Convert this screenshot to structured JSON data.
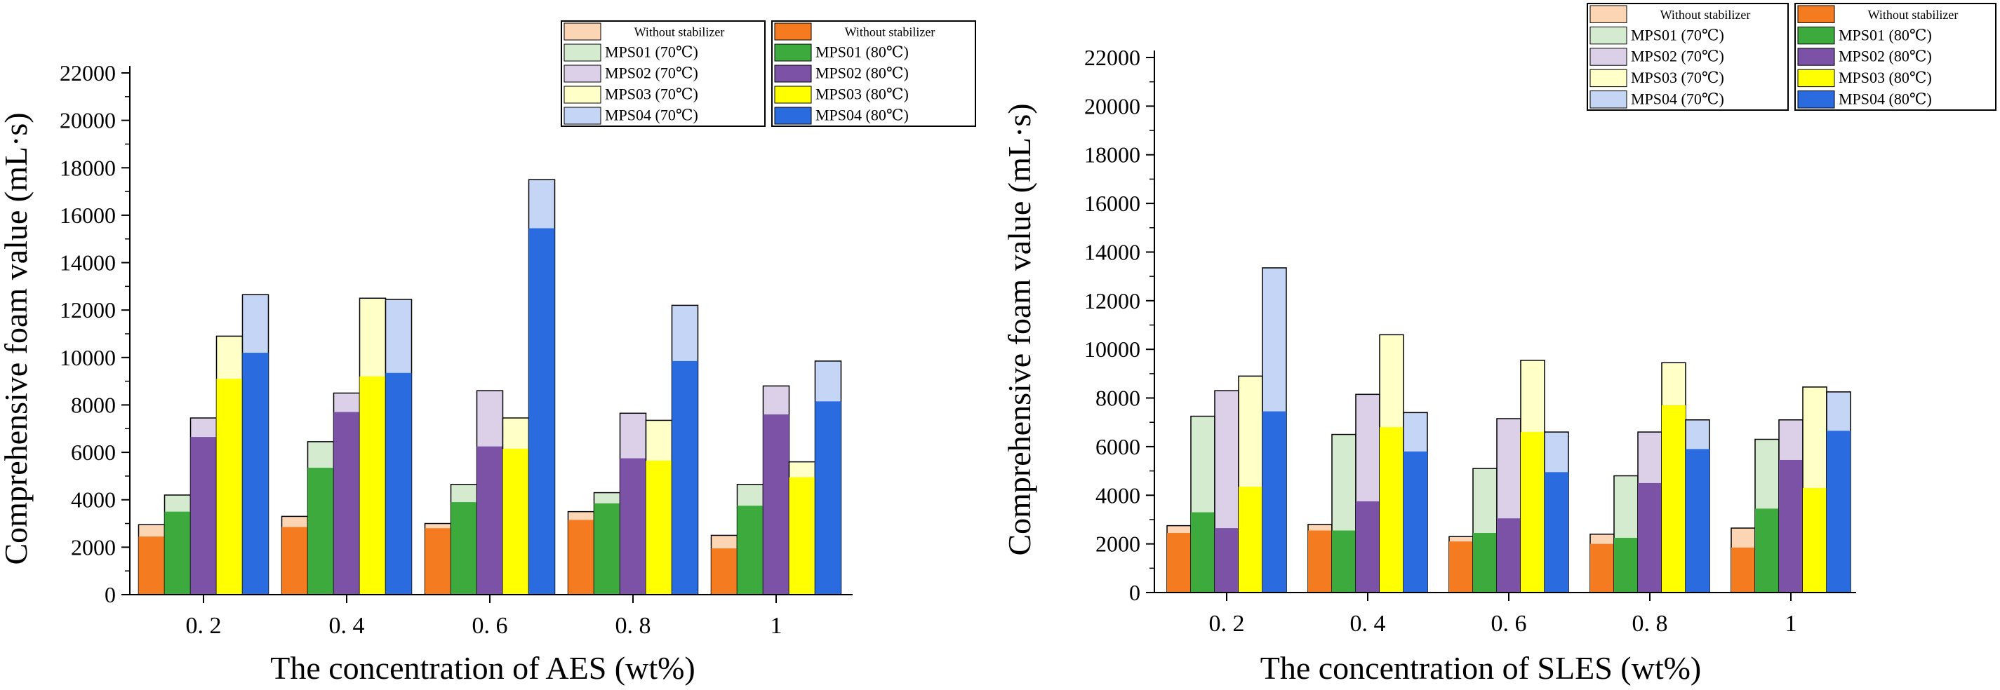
{
  "colors": {
    "without_light": "#FCD5B4",
    "without_dark": "#F47B20",
    "mps01_light": "#D5EBD0",
    "mps01_dark": "#3CAA3C",
    "mps02_light": "#DCD0E8",
    "mps02_dark": "#7B52A6",
    "mps03_light": "#FFFFC8",
    "mps03_dark": "#FFFF00",
    "mps04_light": "#C4D5F5",
    "mps04_dark": "#2A6CE0"
  },
  "chart_data": [
    {
      "type": "bar",
      "ylabel": "Comprehensive foam value (mL·s)",
      "xlabel": "The concentration of AES (wt%)",
      "categories": [
        "0. 2",
        "0. 4",
        "0. 6",
        "0. 8",
        "1"
      ],
      "ylim": [
        0,
        22000
      ],
      "yticks": [
        "0",
        "2000",
        "4000",
        "6000",
        "8000",
        "10000",
        "12000",
        "14000",
        "16000",
        "18000",
        "20000",
        "22000"
      ],
      "legend_70": [
        "Without stabilizer",
        "MPS01 (70℃)",
        "MPS02 (70℃)",
        "MPS03 (70℃)",
        "MPS04 (70℃)"
      ],
      "legend_80": [
        "Without stabilizer",
        "MPS01 (80℃)",
        "MPS02 (80℃)",
        "MPS03 (80℃)",
        "MPS04 (80℃)"
      ],
      "series_70": [
        {
          "name": "Without stabilizer",
          "values": [
            2950,
            3300,
            3000,
            3500,
            2500
          ]
        },
        {
          "name": "MPS01 (70℃)",
          "values": [
            4200,
            6450,
            4650,
            4300,
            4650
          ]
        },
        {
          "name": "MPS02 (70℃)",
          "values": [
            7450,
            8500,
            8600,
            7650,
            8800
          ]
        },
        {
          "name": "MPS03 (70℃)",
          "values": [
            10900,
            12500,
            7450,
            7350,
            5600
          ]
        },
        {
          "name": "MPS04 (70℃)",
          "values": [
            12650,
            12450,
            17500,
            12200,
            9850
          ]
        }
      ],
      "series_80": [
        {
          "name": "Without stabilizer",
          "values": [
            2450,
            2850,
            2800,
            3150,
            1950
          ]
        },
        {
          "name": "MPS01 (80℃)",
          "values": [
            3500,
            5350,
            3900,
            3850,
            3750
          ]
        },
        {
          "name": "MPS02 (80℃)",
          "values": [
            6650,
            7700,
            6250,
            5750,
            7600
          ]
        },
        {
          "name": "MPS03 (80℃)",
          "values": [
            9100,
            9200,
            6150,
            5650,
            4950
          ]
        },
        {
          "name": "MPS04 (80℃)",
          "values": [
            10200,
            9350,
            15450,
            9850,
            8150
          ]
        }
      ]
    },
    {
      "type": "bar",
      "ylabel": "Comprehensive foam value (mL·s)",
      "xlabel": "The concentration of SLES (wt%)",
      "categories": [
        "0. 2",
        "0. 4",
        "0. 6",
        "0. 8",
        "1"
      ],
      "ylim": [
        0,
        22000
      ],
      "yticks": [
        "0",
        "2000",
        "4000",
        "6000",
        "8000",
        "10000",
        "12000",
        "14000",
        "16000",
        "18000",
        "20000",
        "22000"
      ],
      "legend_70": [
        "Without stabilizer",
        "MPS01 (70℃)",
        "MPS02 (70℃)",
        "MPS03 (70℃)",
        "MPS04 (70℃)"
      ],
      "legend_80": [
        "Without stabilizer",
        "MPS01 (80℃)",
        "MPS02 (80℃)",
        "MPS03 (80℃)",
        "MPS04 (80℃)"
      ],
      "series_70": [
        {
          "name": "Without stabilizer",
          "values": [
            2750,
            2800,
            2300,
            2400,
            2650
          ]
        },
        {
          "name": "MPS01 (70℃)",
          "values": [
            7250,
            6500,
            5100,
            4800,
            6300
          ]
        },
        {
          "name": "MPS02 (70℃)",
          "values": [
            8300,
            8150,
            7150,
            6600,
            7100
          ]
        },
        {
          "name": "MPS03 (70℃)",
          "values": [
            8900,
            10600,
            9550,
            9450,
            8450
          ]
        },
        {
          "name": "MPS04 (70℃)",
          "values": [
            13350,
            7400,
            6600,
            7100,
            8250
          ]
        }
      ],
      "series_80": [
        {
          "name": "Without stabilizer",
          "values": [
            2450,
            2550,
            2100,
            2000,
            1850
          ]
        },
        {
          "name": "MPS01 (80℃)",
          "values": [
            3300,
            2550,
            2450,
            2250,
            3450
          ]
        },
        {
          "name": "MPS02 (80℃)",
          "values": [
            2650,
            3750,
            3050,
            4500,
            5450
          ]
        },
        {
          "name": "MPS03 (80℃)",
          "values": [
            4350,
            6800,
            6600,
            7700,
            4300
          ]
        },
        {
          "name": "MPS04 (80℃)",
          "values": [
            7450,
            5800,
            4950,
            5900,
            6650
          ]
        }
      ]
    }
  ]
}
